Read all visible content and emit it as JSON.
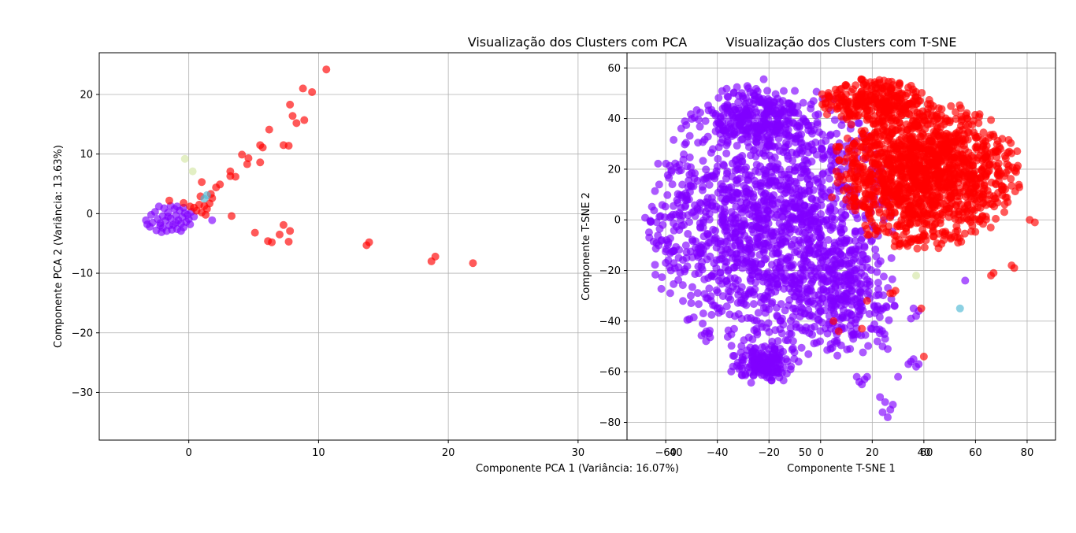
{
  "chart_data": [
    {
      "type": "scatter",
      "title": "Visualização dos Clusters com PCA",
      "xlabel": "Componente PCA 1 (Variância: 16.07%)",
      "ylabel": "Componente PCA 2 (Variância: 13.63%)",
      "xlim": [
        -6.9,
        34.5
      ],
      "ylim": [
        -38,
        27
      ],
      "xticks": [
        0,
        10,
        20,
        30
      ],
      "yticks": [
        20,
        10,
        0,
        -10,
        -20,
        -30
      ],
      "xtick_labels": [
        "0",
        "10",
        "20",
        "30"
      ],
      "ytick_labels": [
        "20",
        "10",
        "0",
        "−10",
        "−20",
        "−30"
      ],
      "grid": true,
      "series": [
        {
          "color": "#8000ff",
          "points": [
            [
              -3.2,
              -1.8
            ],
            [
              -3,
              -2.2
            ],
            [
              -2.8,
              -1.5
            ],
            [
              -2.5,
              -2.8
            ],
            [
              -2.4,
              -0.9
            ],
            [
              -2.2,
              -1.6
            ],
            [
              -2,
              -0.4
            ],
            [
              -2,
              -2.4
            ],
            [
              -1.8,
              -1.2
            ],
            [
              -1.6,
              0.2
            ],
            [
              -1.5,
              -2
            ],
            [
              -1.4,
              -0.8
            ],
            [
              -1.2,
              -1.9
            ],
            [
              -1.1,
              0.8
            ],
            [
              -1,
              -0.3
            ],
            [
              -0.9,
              -2.6
            ],
            [
              -0.8,
              -1.1
            ],
            [
              -0.7,
              0.5
            ],
            [
              -0.6,
              -1.7
            ],
            [
              -0.5,
              -0.6
            ],
            [
              -0.4,
              -2.3
            ],
            [
              -0.3,
              0.1
            ],
            [
              -0.2,
              -1.4
            ],
            [
              -0.1,
              -0.2
            ],
            [
              0,
              -0.9
            ],
            [
              0.1,
              -1.8
            ],
            [
              0.2,
              0.3
            ],
            [
              -1.7,
              -2.9
            ],
            [
              -2.1,
              -3.1
            ],
            [
              -1.3,
              -2.7
            ],
            [
              -0.6,
              -2.9
            ],
            [
              -2.6,
              0.3
            ],
            [
              -1.9,
              0.9
            ],
            [
              -1.4,
              1.3
            ],
            [
              -0.9,
              1.2
            ],
            [
              -0.4,
              1
            ],
            [
              1.8,
              -1.1
            ],
            [
              -2.9,
              -0.2
            ],
            [
              -3.3,
              -1.1
            ],
            [
              -2.3,
              1.2
            ],
            [
              0.4,
              -0.5
            ],
            [
              -1,
              -1.5
            ],
            [
              -1.6,
              -0.5
            ],
            [
              -2.2,
              -2
            ]
          ]
        },
        {
          "color": "#ff0000",
          "points": [
            [
              -1.5,
              2.2
            ],
            [
              -0.4,
              1.8
            ],
            [
              0.1,
              1.2
            ],
            [
              0.4,
              1
            ],
            [
              0.6,
              0.5
            ],
            [
              0.8,
              1.5
            ],
            [
              1,
              0.2
            ],
            [
              1.2,
              1.3
            ],
            [
              1.4,
              0.8
            ],
            [
              1.6,
              1.7
            ],
            [
              0.9,
              2.9
            ],
            [
              1.3,
              -0.2
            ],
            [
              1,
              5.3
            ],
            [
              1.7,
              3.3
            ],
            [
              1.8,
              2.6
            ],
            [
              2.1,
              4.4
            ],
            [
              2.4,
              4.9
            ],
            [
              3.2,
              7.1
            ],
            [
              3.2,
              6.3
            ],
            [
              3.6,
              6.2
            ],
            [
              3.3,
              -0.4
            ],
            [
              4.1,
              9.9
            ],
            [
              4.5,
              8.3
            ],
            [
              4.6,
              9.3
            ],
            [
              5.5,
              11.5
            ],
            [
              5.5,
              8.6
            ],
            [
              5.7,
              11.1
            ],
            [
              6.2,
              14.1
            ],
            [
              6.1,
              -4.6
            ],
            [
              6.4,
              -4.8
            ],
            [
              5.1,
              -3.2
            ],
            [
              7,
              -3.5
            ],
            [
              7.3,
              11.5
            ],
            [
              7.3,
              -1.9
            ],
            [
              7.7,
              11.4
            ],
            [
              7.8,
              18.3
            ],
            [
              8,
              16.4
            ],
            [
              8.3,
              15.2
            ],
            [
              8.8,
              21
            ],
            [
              8.9,
              15.7
            ],
            [
              9.5,
              20.4
            ],
            [
              10.6,
              24.2
            ],
            [
              7.7,
              -4.7
            ],
            [
              7.8,
              -2.9
            ],
            [
              13.7,
              -5.3
            ],
            [
              13.9,
              -4.8
            ],
            [
              18.7,
              -8
            ],
            [
              19,
              -7.2
            ],
            [
              21.9,
              -8.3
            ]
          ]
        },
        {
          "color": "#d4e6a5",
          "points": [
            [
              -0.3,
              9.2
            ],
            [
              0.3,
              7.1
            ]
          ]
        },
        {
          "color": "#4fb9d4",
          "points": [
            [
              1.2,
              2.5
            ],
            [
              1.4,
              3.1
            ]
          ]
        }
      ]
    },
    {
      "type": "scatter",
      "title": "Visualização dos Clusters com T-SNE",
      "xlabel": "Componente T-SNE 1",
      "ylabel": "Componente T-SNE 2",
      "xlim": [
        -75,
        91
      ],
      "ylim": [
        -87,
        66
      ],
      "xticks": [
        -60,
        -40,
        -20,
        0,
        20,
        40,
        60,
        80
      ],
      "yticks": [
        60,
        40,
        20,
        0,
        -20,
        -40,
        -60,
        -80
      ],
      "xtick_labels": [
        "−60",
        "−40",
        "−20",
        "0",
        "20",
        "40",
        "60",
        "80"
      ],
      "ytick_labels": [
        "60",
        "40",
        "20",
        "0",
        "−20",
        "−40",
        "−60",
        "−80"
      ],
      "extra_xtick_labels": [
        {
          "x": -56,
          "label": "40"
        },
        {
          "x": -6,
          "label": "50"
        },
        {
          "x": 41,
          "label": "60"
        }
      ],
      "grid": true,
      "regions": [
        {
          "color": "#8000ff",
          "cx": -20,
          "cy": 0,
          "rx": 48,
          "ry": 56,
          "n": 1500
        },
        {
          "color": "#8000ff",
          "cx": -25,
          "cy": 40,
          "rx": 18,
          "ry": 12,
          "n": 200
        },
        {
          "color": "#8000ff",
          "cx": 10,
          "cy": -30,
          "rx": 22,
          "ry": 25,
          "n": 250
        },
        {
          "color": "#8000ff",
          "cx": -22,
          "cy": -57,
          "rx": 14,
          "ry": 8,
          "n": 150
        },
        {
          "color": "#ff0000",
          "cx": 40,
          "cy": 18,
          "rx": 38,
          "ry": 30,
          "n": 1400
        },
        {
          "color": "#ff0000",
          "cx": 20,
          "cy": 47,
          "rx": 22,
          "ry": 9,
          "n": 250
        }
      ],
      "series": [
        {
          "color": "#8000ff",
          "points": [
            [
              15,
              -64
            ],
            [
              17,
              -63
            ],
            [
              18,
              -62
            ],
            [
              16,
              -65
            ],
            [
              14,
              -62
            ],
            [
              25,
              -72
            ],
            [
              27,
              -75
            ],
            [
              24,
              -76
            ],
            [
              28,
              -73
            ],
            [
              26,
              -78
            ],
            [
              23,
              -70
            ],
            [
              36,
              -55
            ],
            [
              38,
              -57
            ],
            [
              35,
              -56
            ],
            [
              37,
              -58
            ],
            [
              34,
              -57
            ],
            [
              30,
              -62
            ],
            [
              22,
              -48
            ],
            [
              24,
              -50
            ],
            [
              25,
              -47
            ],
            [
              26,
              -51
            ],
            [
              37,
              -38
            ],
            [
              38,
              -36
            ],
            [
              36,
              -35
            ],
            [
              35,
              -39
            ],
            [
              56,
              -24
            ],
            [
              -55,
              -15
            ],
            [
              -58,
              -20
            ],
            [
              -59,
              -16
            ],
            [
              -60,
              -17
            ],
            [
              -46,
              -10
            ],
            [
              -48,
              -13
            ],
            [
              -30,
              48
            ],
            [
              -28,
              52
            ],
            [
              -27,
              44
            ],
            [
              -26,
              50
            ]
          ]
        },
        {
          "color": "#ff0000",
          "points": [
            [
              83,
              -1
            ],
            [
              81,
              0
            ],
            [
              75,
              -19
            ],
            [
              74,
              -18
            ],
            [
              66,
              -22
            ],
            [
              67,
              -21
            ],
            [
              5,
              -40
            ],
            [
              7,
              -44
            ],
            [
              16,
              -43
            ],
            [
              18,
              -32
            ],
            [
              40,
              -54
            ],
            [
              39,
              -35
            ],
            [
              27,
              -29
            ],
            [
              28,
              -29
            ],
            [
              29,
              -28
            ]
          ]
        },
        {
          "color": "#d4e6a5",
          "points": [
            [
              37,
              -22
            ]
          ]
        },
        {
          "color": "#4fb9d4",
          "points": [
            [
              54,
              -35
            ]
          ]
        }
      ]
    }
  ]
}
